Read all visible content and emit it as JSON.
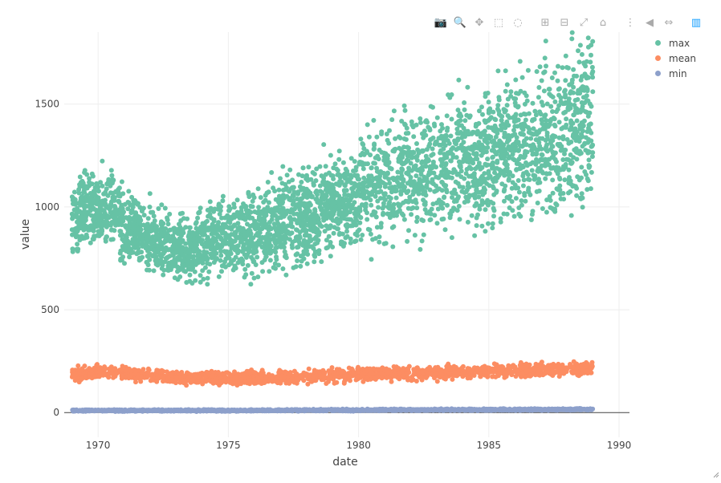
{
  "chart_data": {
    "type": "scatter",
    "xlabel": "date",
    "ylabel": "value",
    "xlim": [
      1968.7,
      1990.4
    ],
    "ylim": [
      -120,
      1850
    ],
    "x_ticks": [
      1970,
      1975,
      1980,
      1985,
      1990
    ],
    "y_ticks": [
      0,
      500,
      1000,
      1500
    ],
    "x_tick_labels": [
      "1970",
      "1975",
      "1980",
      "1985",
      "1990"
    ],
    "y_tick_labels": [
      "0",
      "500",
      "1000",
      "1500"
    ],
    "grid": true,
    "legend_placement": "top-right",
    "series": [
      {
        "name": "max",
        "color": "#66c2a5",
        "x": [
          1969.0,
          1969.5,
          1970.0,
          1970.5,
          1971.0,
          1971.5,
          1972.0,
          1972.5,
          1973.0,
          1973.5,
          1974.0,
          1974.5,
          1975.0,
          1975.5,
          1976.0,
          1976.5,
          1977.0,
          1977.5,
          1978.0,
          1978.5,
          1979.0,
          1979.5,
          1980.0,
          1980.5,
          1981.0,
          1981.5,
          1982.0,
          1982.5,
          1983.0,
          1983.5,
          1984.0,
          1984.5,
          1985.0,
          1985.5,
          1986.0,
          1986.5,
          1987.0,
          1987.5,
          1988.0,
          1988.5,
          1989.0
        ],
        "y": [
          940,
          1000,
          980,
          1010,
          900,
          870,
          840,
          810,
          800,
          790,
          810,
          840,
          860,
          870,
          880,
          900,
          930,
          950,
          960,
          980,
          1000,
          1030,
          1060,
          1100,
          1130,
          1150,
          1180,
          1170,
          1200,
          1190,
          1220,
          1230,
          1270,
          1250,
          1300,
          1290,
          1340,
          1320,
          1380,
          1400,
          1450
        ]
      },
      {
        "name": "mean",
        "color": "#fc8d62",
        "x": [
          1969.0,
          1970.0,
          1971.0,
          1972.0,
          1973.0,
          1974.0,
          1975.0,
          1976.0,
          1977.0,
          1978.0,
          1979.0,
          1980.0,
          1981.0,
          1982.0,
          1983.0,
          1984.0,
          1985.0,
          1986.0,
          1987.0,
          1988.0,
          1989.0
        ],
        "y": [
          185,
          195,
          190,
          180,
          170,
          168,
          165,
          168,
          172,
          176,
          180,
          185,
          190,
          192,
          195,
          198,
          202,
          205,
          208,
          210,
          215
        ]
      },
      {
        "name": "min",
        "color": "#8da0cb",
        "x": [
          1969.0,
          1970.0,
          1971.0,
          1972.0,
          1973.0,
          1974.0,
          1975.0,
          1976.0,
          1977.0,
          1978.0,
          1979.0,
          1980.0,
          1981.0,
          1982.0,
          1983.0,
          1984.0,
          1985.0,
          1986.0,
          1987.0,
          1988.0,
          1989.0
        ],
        "y": [
          10,
          10,
          10,
          10,
          10,
          10,
          10,
          10,
          11,
          11,
          12,
          12,
          13,
          13,
          14,
          14,
          14,
          15,
          15,
          15,
          16
        ]
      }
    ]
  },
  "modebar": [
    {
      "name": "camera-icon",
      "glyph": "📷"
    },
    {
      "name": "zoom-icon",
      "glyph": "🔍"
    },
    {
      "name": "pan-icon",
      "glyph": "✥"
    },
    {
      "name": "box-select-icon",
      "glyph": "⬚"
    },
    {
      "name": "lasso-select-icon",
      "glyph": "◌"
    },
    {
      "name": "zoom-in-icon",
      "glyph": "⊞"
    },
    {
      "name": "zoom-out-icon",
      "glyph": "⊟"
    },
    {
      "name": "autoscale-icon",
      "glyph": "⤢"
    },
    {
      "name": "reset-axes-icon",
      "glyph": "⌂"
    },
    {
      "name": "spike-lines-icon",
      "glyph": "⋮"
    },
    {
      "name": "hover-closest-icon",
      "glyph": "◀"
    },
    {
      "name": "hover-compare-icon",
      "glyph": "⇔"
    },
    {
      "name": "plotly-logo-icon",
      "glyph": "▥"
    }
  ]
}
